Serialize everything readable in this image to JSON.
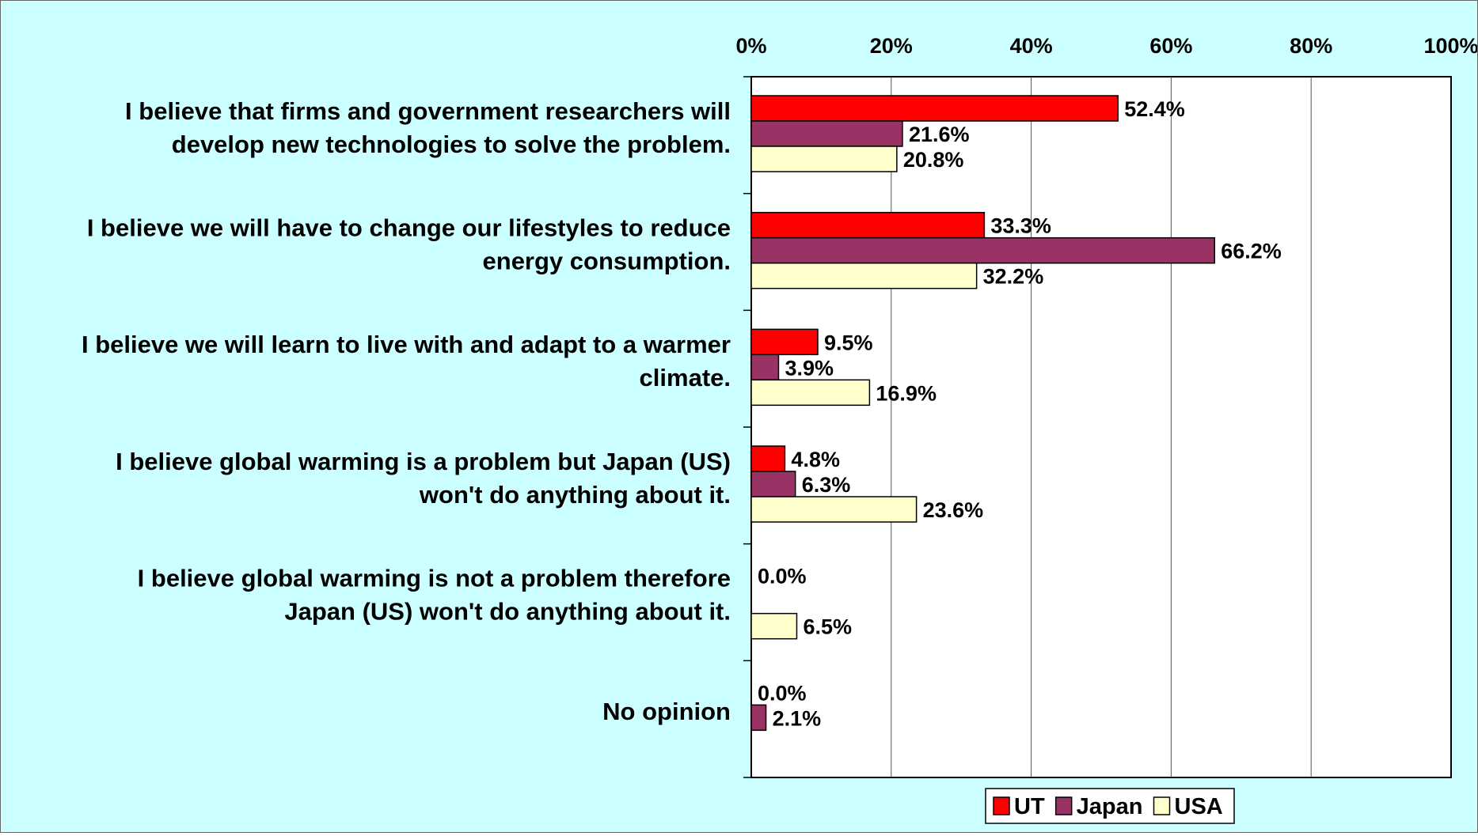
{
  "chart_data": {
    "type": "bar",
    "orientation": "horizontal",
    "categories": [
      [
        "I believe that firms and government researchers will",
        "develop new technologies to solve the problem."
      ],
      [
        "I believe we will have to change our lifestyles to reduce",
        "energy consumption."
      ],
      [
        "I believe we will learn to live with and adapt to a warmer",
        "climate."
      ],
      [
        "I believe global warming is a problem but Japan (US)",
        "won't do anything about it."
      ],
      [
        "I believe global warming is not a problem therefore",
        "Japan (US) won't do anything about it."
      ],
      [
        "No opinion"
      ]
    ],
    "series": [
      {
        "name": "UT",
        "color": "#ff0000",
        "values": [
          52.4,
          33.3,
          9.5,
          4.8,
          0.0,
          0.0
        ],
        "labels": [
          "52.4%",
          "33.3%",
          "9.5%",
          "4.8%",
          "0.0%",
          "0.0%"
        ]
      },
      {
        "name": "Japan",
        "color": "#993366",
        "values": [
          21.6,
          66.2,
          3.9,
          6.3,
          null,
          2.1
        ],
        "labels": [
          "21.6%",
          "66.2%",
          "3.9%",
          "6.3%",
          null,
          "2.1%"
        ]
      },
      {
        "name": "USA",
        "color": "#ffffcc",
        "values": [
          20.8,
          32.2,
          16.9,
          23.6,
          6.5,
          null
        ],
        "labels": [
          "20.8%",
          "32.2%",
          "16.9%",
          "23.6%",
          "6.5%",
          null
        ]
      }
    ],
    "x_ticks": [
      "0%",
      "20%",
      "40%",
      "60%",
      "80%",
      "100%"
    ],
    "xlim": [
      0,
      100
    ],
    "x_axis_position": "top",
    "grid": true,
    "legend_position": "bottom",
    "background_color": "#ccffff",
    "plot_background_color": "#ffffff"
  }
}
